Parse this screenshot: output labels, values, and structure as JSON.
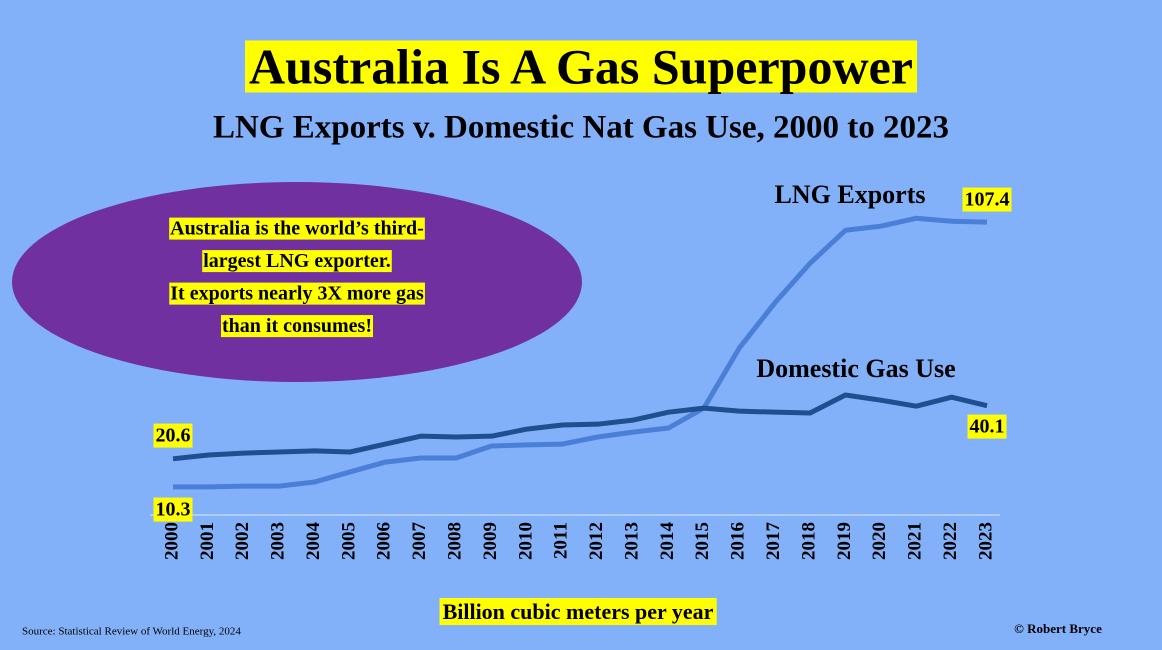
{
  "chart_data": {
    "type": "line",
    "title": "Australia Is A Gas Superpower",
    "subtitle": "LNG Exports v. Domestic Nat Gas Use, 2000 to 2023",
    "categories": [
      "2000",
      "2001",
      "2002",
      "2003",
      "2004",
      "2005",
      "2006",
      "2007",
      "2008",
      "2009",
      "2010",
      "2011",
      "2012",
      "2013",
      "2014",
      "2015",
      "2016",
      "2017",
      "2018",
      "2019",
      "2020",
      "2021",
      "2022",
      "2023"
    ],
    "series": [
      {
        "name": "LNG Exports",
        "color": "#4a7fd8",
        "values": [
          10.3,
          10.3,
          10.6,
          10.6,
          12.1,
          15.8,
          19.4,
          20.9,
          20.9,
          25.3,
          25.7,
          26.0,
          28.6,
          30.4,
          31.9,
          39.2,
          61.2,
          77.7,
          92.3,
          104.4,
          105.9,
          108.8,
          107.7,
          107.4
        ]
      },
      {
        "name": "Domestic Gas Use",
        "color": "#1f4f8f",
        "values": [
          20.6,
          22.0,
          22.7,
          23.1,
          23.5,
          23.1,
          26.0,
          28.9,
          28.6,
          28.9,
          31.5,
          33.0,
          33.3,
          34.8,
          37.7,
          39.2,
          38.1,
          37.7,
          37.4,
          44.0,
          42.1,
          39.9,
          43.2,
          40.1
        ]
      }
    ],
    "ylim": [
      0,
      110
    ],
    "x_label": "Billion cubic meters per year",
    "annotation": [
      "Australia is the world’s third-",
      "largest LNG exporter.",
      "It exports nearly 3X more gas",
      "than it consumes!"
    ],
    "source": "Source: Statistical Review of World Energy, 2024",
    "credit": "© Robert Bryce"
  }
}
